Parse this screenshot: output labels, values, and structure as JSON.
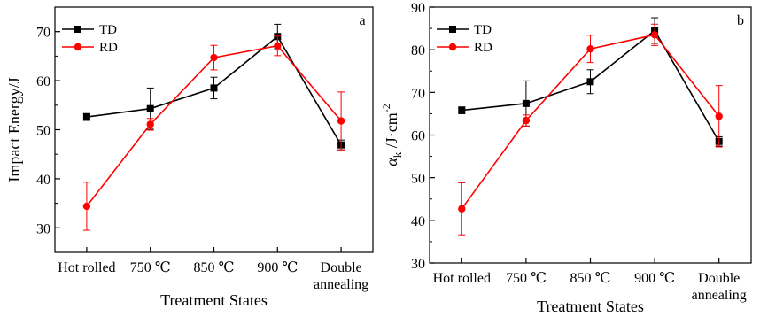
{
  "chart_data": [
    {
      "type": "line",
      "panel_label": "a",
      "categories": [
        "Hot rolled",
        "750 ℃",
        "850 ℃",
        "900 ℃",
        "Double annealing"
      ],
      "category_lines": [
        [
          "Hot rolled"
        ],
        [
          "750 ℃"
        ],
        [
          "850 ℃"
        ],
        [
          "900 ℃"
        ],
        [
          "Double",
          "annealing"
        ]
      ],
      "xlabel": "Treatment States",
      "ylabel": "Impact Energy/J",
      "ylim": [
        25,
        75
      ],
      "yticks": [
        30,
        40,
        50,
        60,
        70
      ],
      "grid": false,
      "legend_position": "top-left",
      "series": [
        {
          "name": "TD",
          "color": "#000000",
          "marker": "square",
          "values": [
            52.6,
            54.3,
            58.5,
            69.0,
            46.9
          ],
          "errors": [
            0.7,
            4.2,
            2.2,
            2.5,
            1.0
          ]
        },
        {
          "name": "RD",
          "color": "#ff0000",
          "marker": "circle",
          "values": [
            34.4,
            51.1,
            64.7,
            67.1,
            51.8
          ],
          "errors": [
            4.9,
            1.2,
            2.5,
            2.0,
            5.9
          ]
        }
      ]
    },
    {
      "type": "line",
      "panel_label": "b",
      "categories": [
        "Hot rolled",
        "750 ℃",
        "850 ℃",
        "900 ℃",
        "Double annealing"
      ],
      "category_lines": [
        [
          "Hot rolled"
        ],
        [
          "750 ℃"
        ],
        [
          "850 ℃"
        ],
        [
          "900 ℃"
        ],
        [
          "Double",
          "annealing"
        ]
      ],
      "xlabel": "Treatment States",
      "ylabel": "αk /J·cm-2",
      "ylim": [
        30,
        90
      ],
      "yticks": [
        30,
        40,
        50,
        60,
        70,
        80,
        90
      ],
      "grid": false,
      "legend_position": "top-left",
      "series": [
        {
          "name": "TD",
          "color": "#000000",
          "marker": "square",
          "values": [
            65.8,
            67.4,
            72.5,
            84.5,
            58.5
          ],
          "errors": [
            0.8,
            5.3,
            2.8,
            3.0,
            1.1
          ]
        },
        {
          "name": "RD",
          "color": "#ff0000",
          "marker": "circle",
          "values": [
            42.7,
            63.4,
            80.2,
            83.5,
            64.4
          ],
          "errors": [
            6.1,
            1.3,
            3.2,
            2.5,
            7.2
          ]
        }
      ]
    }
  ]
}
